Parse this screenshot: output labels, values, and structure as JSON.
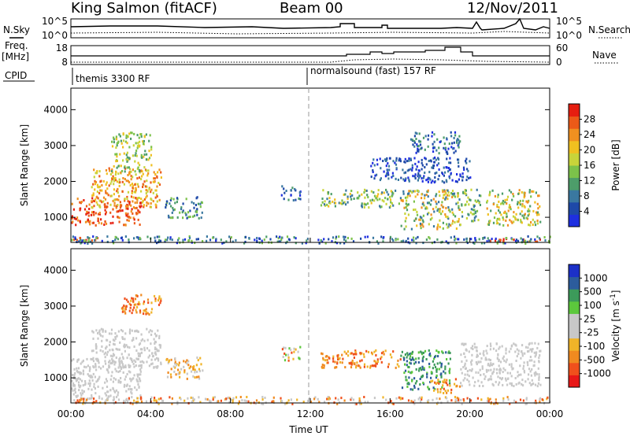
{
  "header": {
    "station": "King Salmon (fitACF)",
    "beam": "Beam 00",
    "date": "12/Nov/2011"
  },
  "side_labels": {
    "nsky": "N.Sky",
    "freq_top": "Freq.",
    "freq_unit": "[MHz]",
    "cpid": "CPID",
    "nsearch": "N.Search",
    "nave": "Nave"
  },
  "noise_panel": {
    "left_ticks": [
      "10^5",
      "10^0"
    ],
    "right_ticks": [
      "10^5",
      "10^0"
    ]
  },
  "freq_panel": {
    "left_ticks": [
      "18",
      "8"
    ],
    "right_ticks": [
      "60",
      "0"
    ]
  },
  "cpid_segments": [
    "themis 3300 RF",
    "normalsound (fast) 157 RF"
  ],
  "colors": {
    "power_scale": [
      "#1e2fe0",
      "#1e49a8",
      "#3a78a0",
      "#4d9d6a",
      "#7cc24a",
      "#c8d43a",
      "#f0c020",
      "#f09020",
      "#ec5a18",
      "#e61e10"
    ],
    "velocity_scale": [
      "#e81818",
      "#f0501c",
      "#f08a20",
      "#f0b428",
      "#c8c8c8",
      "#c8c8c8",
      "#5cc83c",
      "#3c9a5a",
      "#2c5c9c",
      "#1c30c8"
    ]
  },
  "chart_data": [
    {
      "type": "heatmap",
      "name": "power",
      "ylabel": "Slant Range [km]",
      "yticks": [
        1000,
        2000,
        3000,
        4000
      ],
      "ylim": [
        300,
        4600
      ],
      "xticks": [
        "00:00",
        "04:00",
        "08:00",
        "12:00",
        "16:00",
        "20:00",
        "00:00"
      ],
      "colorbar_label": "Power [dB]",
      "colorbar_ticks": [
        "4",
        "8",
        "12",
        "16",
        "20",
        "24",
        "28"
      ],
      "blobs": [
        {
          "t": [
            0.0,
            3.5
          ],
          "r": [
            800,
            1600
          ],
          "level": [
            7,
            9
          ]
        },
        {
          "t": [
            1.0,
            4.5
          ],
          "r": [
            1300,
            2400
          ],
          "level": [
            5,
            8
          ]
        },
        {
          "t": [
            0.0,
            1.5
          ],
          "r": [
            350,
            460
          ],
          "level": [
            8,
            9
          ]
        },
        {
          "t": [
            4.7,
            6.6
          ],
          "r": [
            1000,
            1600
          ],
          "level": [
            1,
            4
          ]
        },
        {
          "t": [
            2.0,
            4.0
          ],
          "r": [
            2300,
            3400
          ],
          "level": [
            3,
            6
          ]
        },
        {
          "t": [
            10.5,
            11.5
          ],
          "r": [
            1500,
            1900
          ],
          "level": [
            0,
            3
          ]
        },
        {
          "t": [
            12.5,
            16.5
          ],
          "r": [
            1300,
            1800
          ],
          "level": [
            2,
            6
          ]
        },
        {
          "t": [
            16.5,
            19.5
          ],
          "r": [
            700,
            1800
          ],
          "level": [
            2,
            7
          ]
        },
        {
          "t": [
            15.0,
            20.0
          ],
          "r": [
            2000,
            2700
          ],
          "level": [
            0,
            2
          ]
        },
        {
          "t": [
            17.0,
            19.5
          ],
          "r": [
            2800,
            3400
          ],
          "level": [
            0,
            3
          ]
        },
        {
          "t": [
            19.5,
            20.5
          ],
          "r": [
            900,
            1800
          ],
          "level": [
            2,
            5
          ]
        },
        {
          "t": [
            20.8,
            23.5
          ],
          "r": [
            800,
            1800
          ],
          "level": [
            3,
            7
          ]
        },
        {
          "t": [
            20.8,
            23.5
          ],
          "r": [
            350,
            460
          ],
          "level": [
            8,
            9
          ]
        },
        {
          "t": [
            0,
            24
          ],
          "r": [
            300,
            500
          ],
          "level": [
            0,
            4
          ]
        }
      ]
    },
    {
      "type": "heatmap",
      "name": "velocity",
      "ylabel": "Slant Range [km]",
      "yticks": [
        1000,
        2000,
        3000,
        4000
      ],
      "ylim": [
        300,
        4600
      ],
      "xticks": [
        "00:00",
        "04:00",
        "08:00",
        "12:00",
        "16:00",
        "20:00",
        "00:00"
      ],
      "xlabel": "Time UT",
      "colorbar_label": "Velocity [m s",
      "colorbar_label_sup": "-1",
      "colorbar_label_close": "]",
      "colorbar_ticks": [
        "-1000",
        "-500",
        "-100",
        "-25",
        "25",
        "100",
        "500",
        "1000"
      ],
      "blobs": [
        {
          "t": [
            0.0,
            3.5
          ],
          "r": [
            400,
            1600
          ],
          "level": [
            4,
            5
          ]
        },
        {
          "t": [
            1.0,
            4.5
          ],
          "r": [
            1300,
            2400
          ],
          "level": [
            4,
            5
          ]
        },
        {
          "t": [
            4.7,
            6.6
          ],
          "r": [
            1000,
            1600
          ],
          "level": [
            2,
            4
          ]
        },
        {
          "t": [
            2.5,
            4.5
          ],
          "r": [
            2800,
            3400
          ],
          "level": [
            1,
            3
          ]
        },
        {
          "t": [
            10.5,
            11.5
          ],
          "r": [
            1500,
            1900
          ],
          "level": [
            1,
            6
          ]
        },
        {
          "t": [
            12.5,
            16.5
          ],
          "r": [
            1300,
            1800
          ],
          "level": [
            1,
            3
          ]
        },
        {
          "t": [
            16.5,
            19.0
          ],
          "r": [
            700,
            1800
          ],
          "level": [
            6,
            8
          ]
        },
        {
          "t": [
            18.0,
            19.5
          ],
          "r": [
            600,
            1000
          ],
          "level": [
            1,
            3
          ]
        },
        {
          "t": [
            19.5,
            23.5
          ],
          "r": [
            800,
            2000
          ],
          "level": [
            4,
            5
          ]
        },
        {
          "t": [
            0,
            24
          ],
          "r": [
            300,
            500
          ],
          "level": [
            1,
            5
          ]
        }
      ]
    }
  ]
}
